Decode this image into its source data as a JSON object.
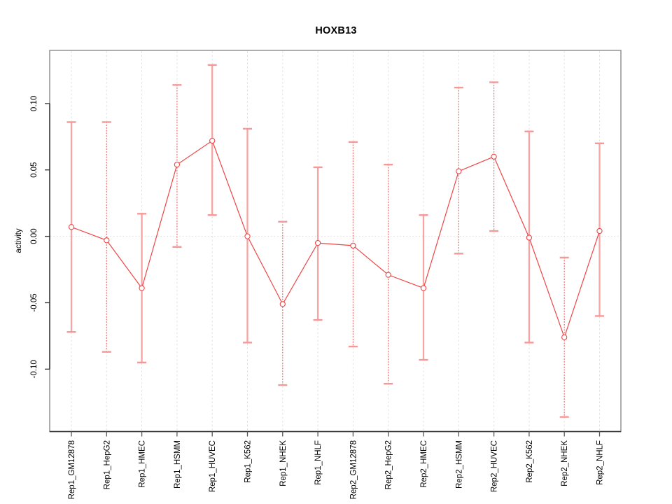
{
  "chart_data": {
    "type": "line",
    "title": "HOXB13",
    "ylabel": "activity",
    "xlabel": "",
    "legend_position": "none",
    "grid": {
      "vertical_dashed": true,
      "zero_dotted_line": true
    },
    "categories": [
      "Rep1_GM12878",
      "Rep1_HepG2",
      "Rep1_HMEC",
      "Rep1_HSMM",
      "Rep1_HUVEC",
      "Rep1_K562",
      "Rep1_NHEK",
      "Rep1_NHLF",
      "Rep2_GM12878",
      "Rep2_HepG2",
      "Rep2_HMEC",
      "Rep2_HSMM",
      "Rep2_HUVEC",
      "Rep2_K562",
      "Rep2_NHEK",
      "Rep2_NHLF"
    ],
    "series": [
      {
        "name": "activity",
        "values": [
          0.007,
          -0.003,
          -0.039,
          0.054,
          0.072,
          0.0,
          -0.051,
          -0.005,
          -0.007,
          -0.029,
          -0.039,
          0.049,
          0.06,
          -0.001,
          -0.076,
          0.004
        ]
      }
    ],
    "error_low": [
      -0.072,
      -0.087,
      -0.095,
      -0.008,
      0.016,
      -0.08,
      -0.112,
      -0.063,
      -0.083,
      -0.111,
      -0.093,
      -0.013,
      0.004,
      -0.08,
      -0.136,
      -0.06
    ],
    "error_high": [
      0.086,
      0.086,
      0.017,
      0.114,
      0.129,
      0.081,
      0.011,
      0.052,
      0.071,
      0.054,
      0.016,
      0.112,
      0.116,
      0.079,
      -0.016,
      0.07
    ],
    "error_bar_styles": [
      "solid",
      "dotted",
      "solid",
      "dotted",
      "solid",
      "solid",
      "dotted",
      "solid",
      "dotted",
      "dotted",
      "solid",
      "dotted",
      "dotted",
      "solid",
      "dotted",
      "solid"
    ],
    "yticks": [
      0.1,
      0.05,
      0.0,
      -0.05,
      -0.1
    ],
    "ytick_labels": [
      "0.10",
      "0.05",
      "0.00",
      "-0.05",
      "-0.10"
    ],
    "ylim": [
      -0.147,
      0.14
    ],
    "colors": {
      "series_line": "#ee4545",
      "point_stroke": "#ee4545",
      "point_fill": "#ffffff",
      "error_bar_solid": "#f5a3a3",
      "error_bar_dotted": "#ee5e5e",
      "error_bar_cap": "#f59898",
      "gridline": "#e0e0e0",
      "zero_line": "#d9d9d9",
      "box_border": "#999999",
      "axis_line": "#333333",
      "tick": "#555555",
      "label_text": "#000000"
    }
  }
}
